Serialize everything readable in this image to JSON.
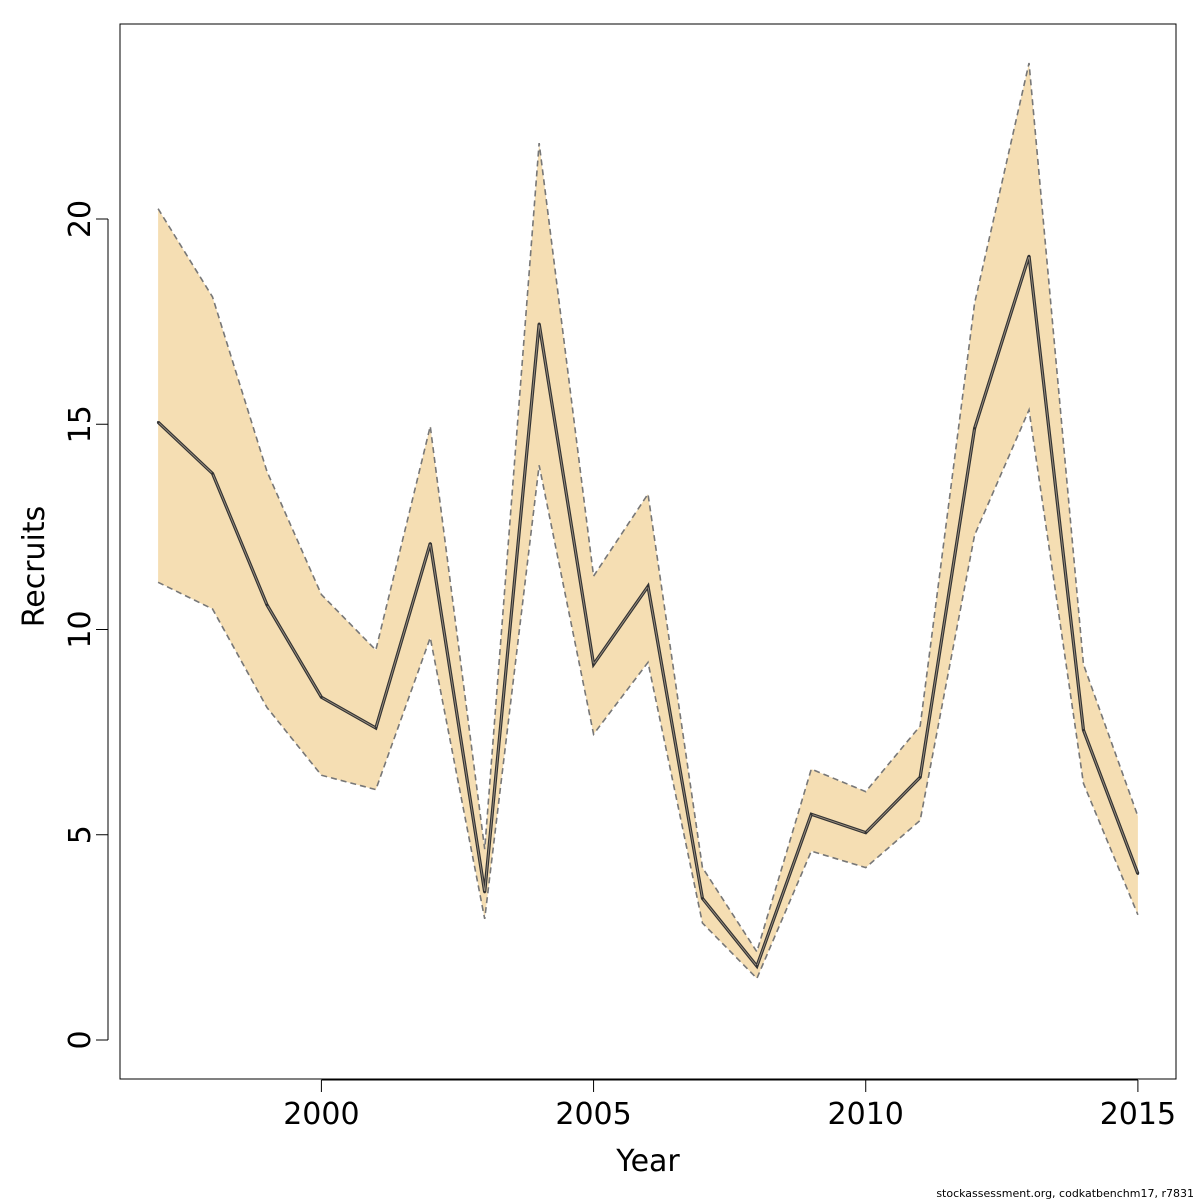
{
  "chart_data": {
    "type": "line",
    "title": "",
    "xlabel": "Year",
    "ylabel": "Recruits",
    "xlim": [
      1996.3,
      2015.7
    ],
    "ylim": [
      -0.95,
      24.75
    ],
    "x_ticks": [
      2000,
      2005,
      2010,
      2015
    ],
    "y_ticks": [
      0,
      5,
      10,
      15,
      20
    ],
    "grid": false,
    "legend": "none",
    "x": [
      1997,
      1998,
      1999,
      2000,
      2001,
      2002,
      2003,
      2004,
      2005,
      2006,
      2007,
      2008,
      2009,
      2010,
      2011,
      2012,
      2013,
      2014,
      2015
    ],
    "series": [
      {
        "role": "estimate",
        "values": [
          15.05,
          13.8,
          10.6,
          8.35,
          7.6,
          12.1,
          3.6,
          17.45,
          9.15,
          11.05,
          3.45,
          1.8,
          5.5,
          5.05,
          6.4,
          14.9,
          19.1,
          7.55,
          4.05
        ]
      },
      {
        "role": "lower",
        "values": [
          11.15,
          10.5,
          8.1,
          6.45,
          6.1,
          9.8,
          2.95,
          14.0,
          7.45,
          9.2,
          2.85,
          1.5,
          4.6,
          4.2,
          5.35,
          12.3,
          15.35,
          6.25,
          3.05
        ]
      },
      {
        "role": "upper",
        "values": [
          20.25,
          18.1,
          13.85,
          10.85,
          9.5,
          14.95,
          4.65,
          21.85,
          11.3,
          13.3,
          4.2,
          2.15,
          6.6,
          6.05,
          7.65,
          17.95,
          23.8,
          9.15,
          5.45
        ]
      }
    ],
    "colors": {
      "band_fill": "#f5deb3",
      "band_border": "#777777",
      "line": "#333333",
      "axis": "#000000"
    }
  },
  "footer": {
    "note": "stockassessment.org, codkatbenchm17, r7831"
  }
}
